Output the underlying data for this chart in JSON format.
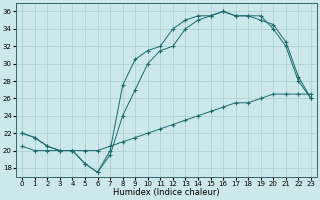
{
  "title": "",
  "xlabel": "Humidex (Indice chaleur)",
  "background_color": "#cce8ea",
  "grid_color": "#aacccc",
  "line_color": "#1a6b6b",
  "xlim": [
    -0.5,
    23.5
  ],
  "ylim": [
    17,
    37
  ],
  "yticks": [
    18,
    20,
    22,
    24,
    26,
    28,
    30,
    32,
    34,
    36
  ],
  "xticks": [
    0,
    1,
    2,
    3,
    4,
    5,
    6,
    7,
    8,
    9,
    10,
    11,
    12,
    13,
    14,
    15,
    16,
    17,
    18,
    19,
    20,
    21,
    22,
    23
  ],
  "series": [
    {
      "x": [
        0,
        1,
        2,
        3,
        4,
        5,
        6,
        7,
        8,
        9,
        10,
        11,
        12,
        13,
        14,
        15,
        16,
        17,
        18,
        19,
        20,
        21,
        22,
        23
      ],
      "y": [
        22.0,
        21.5,
        20.5,
        20.0,
        20.0,
        18.5,
        17.5,
        20.0,
        27.5,
        30.5,
        31.5,
        32.0,
        34.0,
        35.0,
        35.5,
        35.5,
        36.0,
        35.5,
        35.5,
        35.5,
        34.0,
        32.0,
        28.0,
        26.0
      ]
    },
    {
      "x": [
        0,
        1,
        2,
        3,
        4,
        5,
        6,
        7,
        8,
        9,
        10,
        11,
        12,
        13,
        14,
        15,
        16,
        17,
        18,
        19,
        20,
        21,
        22,
        23
      ],
      "y": [
        22.0,
        21.5,
        20.5,
        20.0,
        20.0,
        18.5,
        17.5,
        19.5,
        24.0,
        27.0,
        30.0,
        31.5,
        32.0,
        34.0,
        35.0,
        35.5,
        36.0,
        35.5,
        35.5,
        35.0,
        34.5,
        32.5,
        28.5,
        26.0
      ]
    },
    {
      "x": [
        0,
        1,
        2,
        3,
        4,
        5,
        6,
        7,
        8,
        9,
        10,
        11,
        12,
        13,
        14,
        15,
        16,
        17,
        18,
        19,
        20,
        21,
        22,
        23
      ],
      "y": [
        20.5,
        20.0,
        20.0,
        20.0,
        20.0,
        20.0,
        20.0,
        20.5,
        21.0,
        21.5,
        22.0,
        22.5,
        23.0,
        23.5,
        24.0,
        24.5,
        25.0,
        25.5,
        25.5,
        26.0,
        26.5,
        26.5,
        26.5,
        26.5
      ]
    }
  ]
}
